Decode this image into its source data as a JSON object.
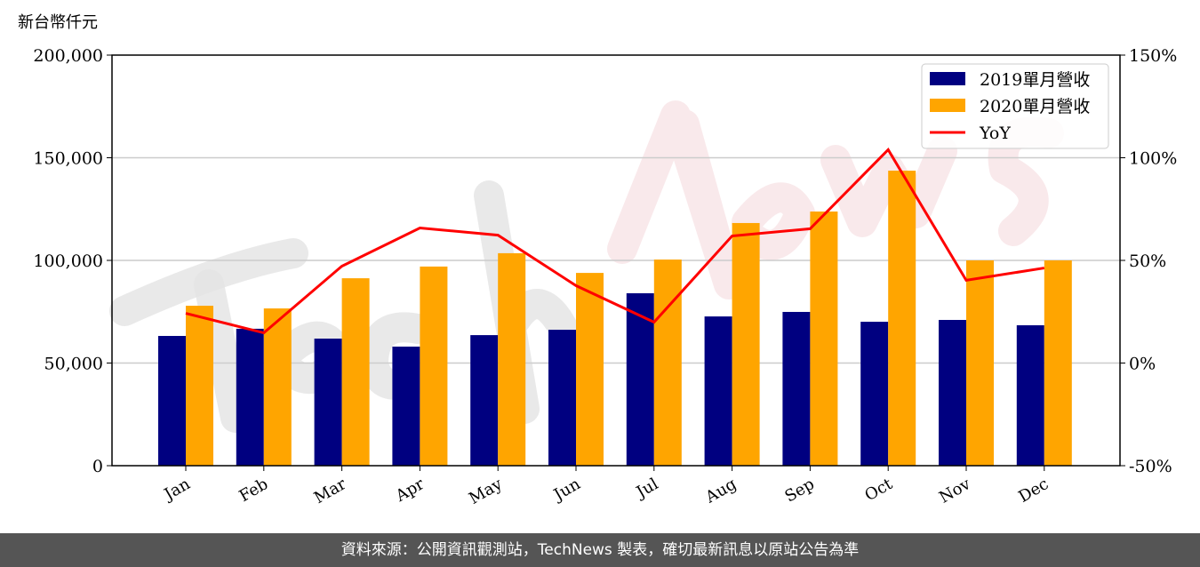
{
  "chart_data": {
    "type": "bar",
    "ylabel": "新台幣仟元",
    "categories": [
      "Jan",
      "Feb",
      "Mar",
      "Apr",
      "May",
      "Jun",
      "Jul",
      "Aug",
      "Sep",
      "Oct",
      "Nov",
      "Dec"
    ],
    "series": [
      {
        "name": "2019單月營收",
        "kind": "bar",
        "axis": "left",
        "color": "#000080",
        "values": [
          63200,
          66700,
          61900,
          58000,
          63600,
          66200,
          84000,
          72700,
          74900,
          70100,
          71000,
          68400
        ]
      },
      {
        "name": "2020單月營收",
        "kind": "bar",
        "axis": "left",
        "color": "#FFA500",
        "values": [
          77900,
          76600,
          91300,
          97000,
          103500,
          93900,
          100400,
          118200,
          123800,
          143700,
          100000,
          100000
        ]
      },
      {
        "name": "YoY",
        "kind": "line",
        "axis": "right",
        "color": "#FF0000",
        "values": [
          24.2,
          14.7,
          47.2,
          65.8,
          62.3,
          37.7,
          19.9,
          61.9,
          65.4,
          103.9,
          40.3,
          46.3
        ]
      }
    ],
    "ylim": [
      0,
      200000
    ],
    "yticks": [
      "0",
      "50,000",
      "100,000",
      "150,000",
      "200,000"
    ],
    "y2lim": [
      -50,
      150
    ],
    "y2ticks": [
      "-50%",
      "0%",
      "50%",
      "100%",
      "150%"
    ],
    "grid": "horizontal",
    "legend": "top-right",
    "watermark": "TechNews"
  },
  "footer": {
    "text": "資料來源：公開資訊觀測站，TechNews 製表，確切最新訊息以原站公告為準"
  }
}
